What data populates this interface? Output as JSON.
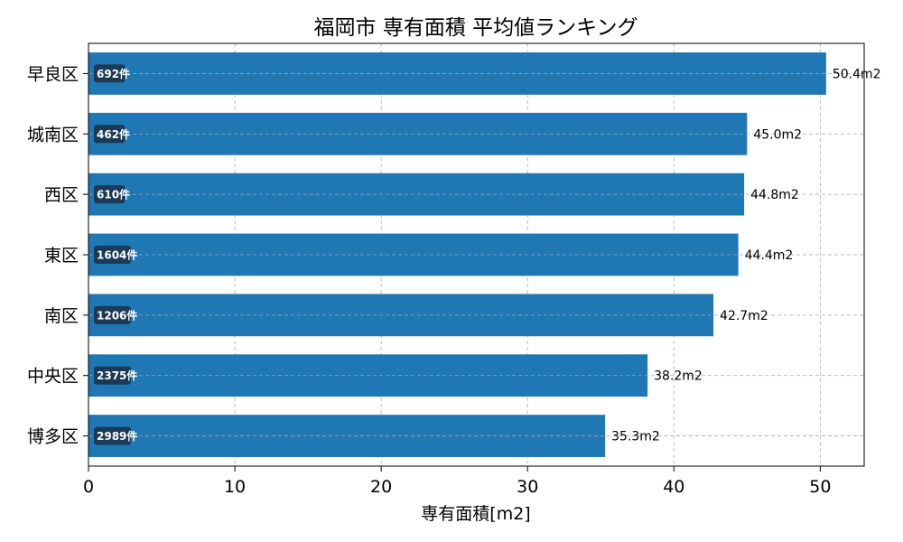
{
  "chart_data": {
    "type": "bar",
    "orientation": "horizontal",
    "title": "福岡市 専有面積 平均値ランキング",
    "xlabel": "専有面積[m2]",
    "ylabel": "",
    "xlim": [
      0,
      53
    ],
    "xticks": [
      0,
      10,
      20,
      30,
      40,
      50
    ],
    "grid": true,
    "bar_color": "#1f77b4",
    "count_badge_color": "#1c3a57",
    "categories": [
      "早良区",
      "城南区",
      "西区",
      "東区",
      "南区",
      "中央区",
      "博多区"
    ],
    "values": [
      50.4,
      45.0,
      44.8,
      44.4,
      42.7,
      38.2,
      35.3
    ],
    "value_labels": [
      "50.4m2",
      "45.0m2",
      "44.8m2",
      "44.4m2",
      "42.7m2",
      "38.2m2",
      "35.3m2"
    ],
    "count_labels": [
      "692件",
      "462件",
      "610件",
      "1604件",
      "1206件",
      "2375件",
      "2989件"
    ]
  }
}
